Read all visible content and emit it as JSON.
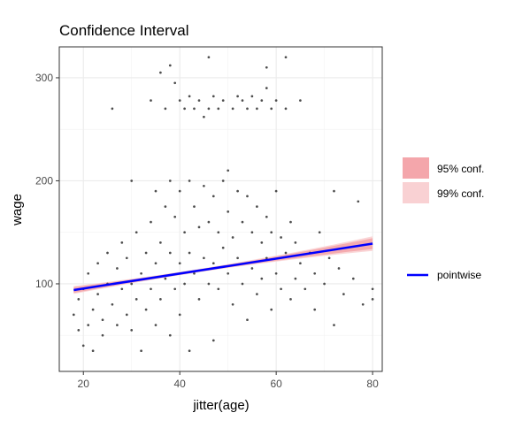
{
  "chart_data": {
    "type": "scatter",
    "title": "Confidence Interval",
    "xlabel": "jitter(age)",
    "ylabel": "wage",
    "xlim": [
      15,
      82
    ],
    "ylim": [
      15,
      330
    ],
    "x_ticks": [
      20,
      40,
      60,
      80
    ],
    "y_ticks": [
      100,
      200,
      300
    ],
    "grid": true,
    "legend_position": "right",
    "scatter": {
      "name": "",
      "color": "#4d4d4d",
      "points": [
        [
          18,
          70
        ],
        [
          19,
          55
        ],
        [
          19,
          85
        ],
        [
          20,
          40
        ],
        [
          20,
          95
        ],
        [
          21,
          60
        ],
        [
          21,
          110
        ],
        [
          22,
          75
        ],
        [
          22,
          35
        ],
        [
          23,
          90
        ],
        [
          23,
          120
        ],
        [
          24,
          65
        ],
        [
          24,
          50
        ],
        [
          25,
          100
        ],
        [
          25,
          130
        ],
        [
          26,
          270
        ],
        [
          26,
          80
        ],
        [
          27,
          60
        ],
        [
          27,
          115
        ],
        [
          28,
          95
        ],
        [
          28,
          140
        ],
        [
          29,
          70
        ],
        [
          29,
          125
        ],
        [
          30,
          200
        ],
        [
          30,
          100
        ],
        [
          30,
          55
        ],
        [
          31,
          85
        ],
        [
          31,
          150
        ],
        [
          32,
          110
        ],
        [
          32,
          35
        ],
        [
          33,
          130
        ],
        [
          33,
          75
        ],
        [
          34,
          278
        ],
        [
          34,
          160
        ],
        [
          34,
          95
        ],
        [
          35,
          190
        ],
        [
          35,
          120
        ],
        [
          35,
          60
        ],
        [
          36,
          305
        ],
        [
          36,
          140
        ],
        [
          36,
          85
        ],
        [
          37,
          270
        ],
        [
          37,
          175
        ],
        [
          37,
          105
        ],
        [
          38,
          312
        ],
        [
          38,
          200
        ],
        [
          38,
          130
        ],
        [
          38,
          50
        ],
        [
          39,
          295
        ],
        [
          39,
          165
        ],
        [
          39,
          95
        ],
        [
          40,
          278
        ],
        [
          40,
          190
        ],
        [
          40,
          120
        ],
        [
          40,
          70
        ],
        [
          41,
          270
        ],
        [
          41,
          150
        ],
        [
          41,
          100
        ],
        [
          42,
          282
        ],
        [
          42,
          200
        ],
        [
          42,
          130
        ],
        [
          42,
          35
        ],
        [
          43,
          270
        ],
        [
          43,
          175
        ],
        [
          43,
          110
        ],
        [
          44,
          278
        ],
        [
          44,
          155
        ],
        [
          44,
          85
        ],
        [
          45,
          262
        ],
        [
          45,
          195
        ],
        [
          45,
          125
        ],
        [
          46,
          320
        ],
        [
          46,
          270
        ],
        [
          46,
          160
        ],
        [
          46,
          100
        ],
        [
          47,
          282
        ],
        [
          47,
          185
        ],
        [
          47,
          120
        ],
        [
          47,
          45
        ],
        [
          48,
          270
        ],
        [
          48,
          150
        ],
        [
          48,
          95
        ],
        [
          49,
          278
        ],
        [
          49,
          200
        ],
        [
          49,
          135
        ],
        [
          50,
          210
        ],
        [
          50,
          170
        ],
        [
          50,
          110
        ],
        [
          51,
          270
        ],
        [
          51,
          145
        ],
        [
          51,
          80
        ],
        [
          52,
          282
        ],
        [
          52,
          190
        ],
        [
          52,
          125
        ],
        [
          53,
          278
        ],
        [
          53,
          160
        ],
        [
          53,
          100
        ],
        [
          54,
          270
        ],
        [
          54,
          185
        ],
        [
          54,
          65
        ],
        [
          55,
          282
        ],
        [
          55,
          150
        ],
        [
          55,
          115
        ],
        [
          56,
          270
        ],
        [
          56,
          175
        ],
        [
          56,
          90
        ],
        [
          57,
          278
        ],
        [
          57,
          140
        ],
        [
          57,
          105
        ],
        [
          58,
          310
        ],
        [
          58,
          290
        ],
        [
          58,
          165
        ],
        [
          58,
          125
        ],
        [
          59,
          270
        ],
        [
          59,
          150
        ],
        [
          59,
          75
        ],
        [
          60,
          278
        ],
        [
          60,
          190
        ],
        [
          60,
          110
        ],
        [
          61,
          145
        ],
        [
          61,
          95
        ],
        [
          62,
          320
        ],
        [
          62,
          270
        ],
        [
          62,
          130
        ],
        [
          63,
          160
        ],
        [
          63,
          85
        ],
        [
          64,
          140
        ],
        [
          64,
          105
        ],
        [
          65,
          278
        ],
        [
          65,
          120
        ],
        [
          66,
          95
        ],
        [
          67,
          130
        ],
        [
          68,
          110
        ],
        [
          68,
          75
        ],
        [
          69,
          150
        ],
        [
          70,
          100
        ],
        [
          71,
          125
        ],
        [
          72,
          190
        ],
        [
          72,
          60
        ],
        [
          73,
          115
        ],
        [
          74,
          90
        ],
        [
          76,
          105
        ],
        [
          77,
          180
        ],
        [
          78,
          80
        ],
        [
          80,
          95
        ],
        [
          80,
          85
        ]
      ]
    },
    "fit_line": {
      "name": "pointwise",
      "color": "#0000ff",
      "x": [
        18,
        80
      ],
      "y": [
        94,
        139
      ]
    },
    "bands": [
      {
        "name": "95% conf.",
        "color": "#f4a6ab"
      },
      {
        "name": "99% conf.",
        "color": "#f9d1d3"
      }
    ]
  }
}
